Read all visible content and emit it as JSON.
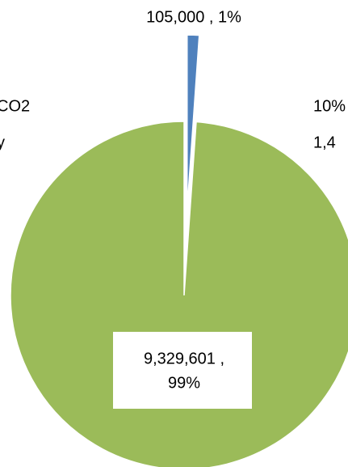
{
  "chart_data": {
    "type": "pie",
    "categories": [
      null,
      null
    ],
    "values": [
      105000,
      9329601
    ],
    "value_labels": [
      "105,000 , 1%",
      [
        "9,329,601 ,",
        "99%"
      ]
    ],
    "colors": [
      "#4f81bd",
      "#9bbb59"
    ],
    "annotations": [
      "CO2",
      "y",
      "10%",
      "1,4"
    ]
  }
}
